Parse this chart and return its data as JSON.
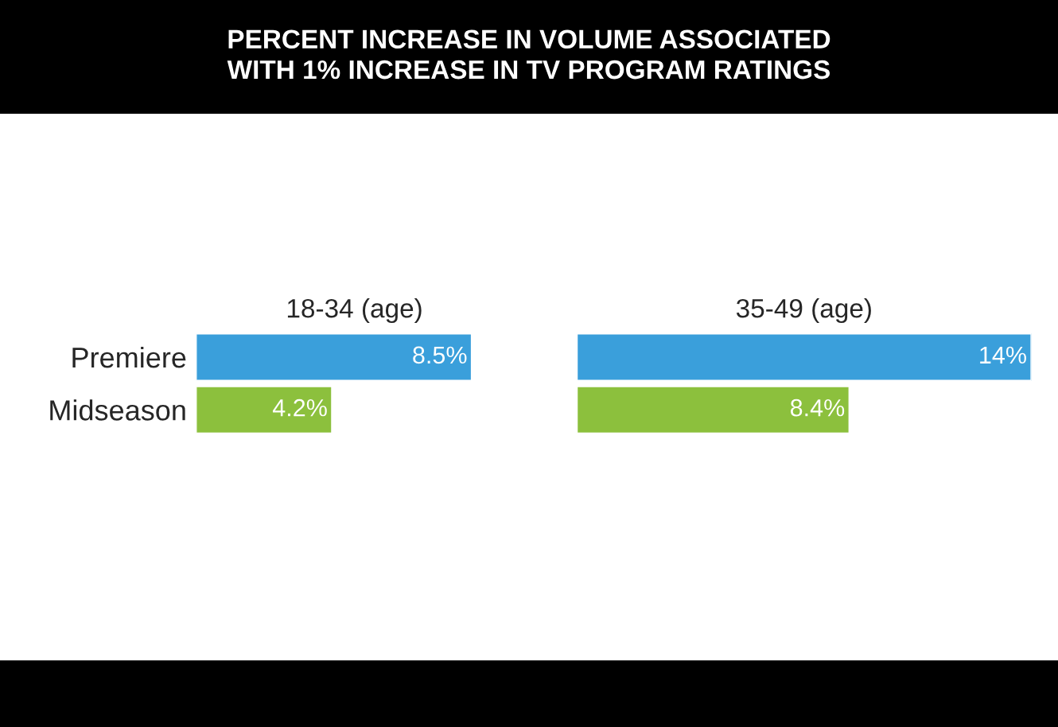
{
  "chart_data": [
    {
      "type": "bar",
      "orientation": "horizontal",
      "title": "18-34 (age)",
      "annotations": [
        "PERCENT INCREASE IN VOLUME ASSOCIATED\nWITH 1% INCREASE IN TV PROGRAM RATINGS"
      ],
      "categories": [
        "Premiere",
        "Midseason"
      ],
      "values": [
        8.5,
        4.2
      ],
      "colors": [
        "#3a9fdb",
        "#8cc03d"
      ],
      "value_labels": [
        "8.5%",
        "4.2%"
      ],
      "grid": false,
      "legend": false
    },
    {
      "type": "bar",
      "orientation": "horizontal",
      "title": "35-49 (age)",
      "categories": [
        null,
        null
      ],
      "values": [
        14,
        8.4
      ],
      "colors": [
        "#3a9fdb",
        "#8cc03d"
      ],
      "value_labels": [
        "14%",
        "8.4%"
      ],
      "grid": false,
      "legend": false
    }
  ]
}
